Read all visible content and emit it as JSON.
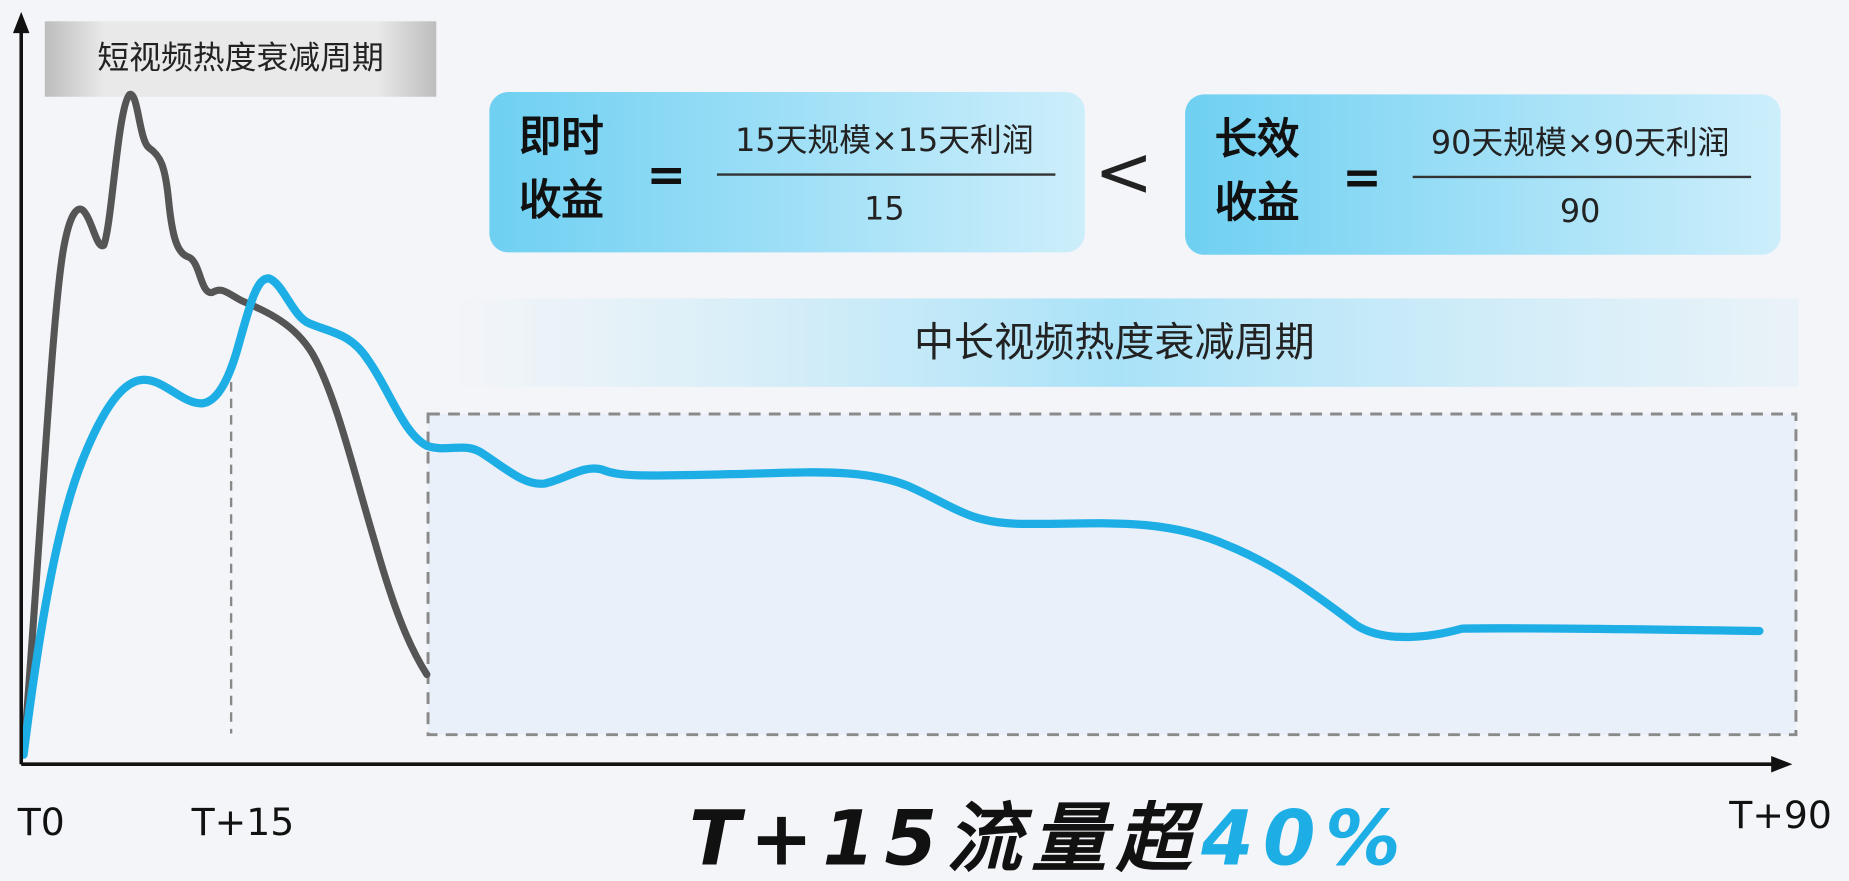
{
  "axis_labels": {
    "short_cycle": "短视频热度衰减周期",
    "long_cycle": "中长视频热度衰减周期",
    "x_start": "T0",
    "x_mid": "T+15",
    "x_end": "T+90"
  },
  "left_formula": {
    "label_lines": [
      "即时",
      "收益"
    ],
    "equals": "=",
    "numerator": "15天规模×15天利润",
    "denominator": "15"
  },
  "comparison": "<",
  "right_formula": {
    "label_lines": [
      "长效",
      "收益"
    ],
    "equals": "=",
    "numerator": "90天规模×90天利润",
    "denominator": "90"
  },
  "headline": {
    "text": "T+15流量超",
    "highlight": "40%"
  }
}
